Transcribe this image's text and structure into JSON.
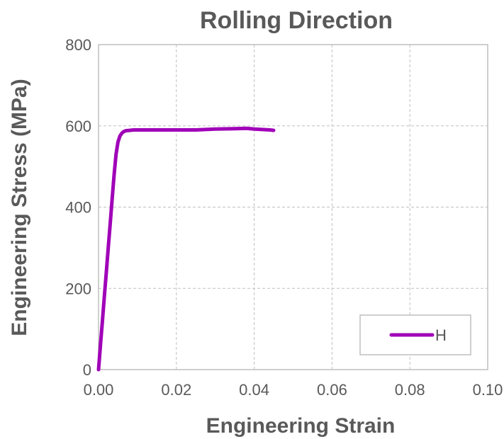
{
  "chart_data": {
    "type": "line",
    "title": "Rolling Direction",
    "xlabel": "Engineering Strain",
    "ylabel": "Engineering Stress (MPa)",
    "xlim": [
      0,
      0.1
    ],
    "ylim": [
      0,
      800
    ],
    "x_ticks": [
      0,
      0.02,
      0.04,
      0.06,
      0.08,
      0.1
    ],
    "x_tick_labels": [
      "0.00",
      "0.02",
      "0.04",
      "0.06",
      "0.08",
      "0.10"
    ],
    "y_ticks": [
      0,
      200,
      400,
      600,
      800
    ],
    "y_tick_labels": [
      "0",
      "200",
      "400",
      "600",
      "800"
    ],
    "grid": "dashed",
    "legend_position": "bottom-right",
    "series": [
      {
        "name": "H",
        "color": "#a000b8",
        "x": [
          0,
          0.0005,
          0.001,
          0.0015,
          0.002,
          0.0025,
          0.003,
          0.0035,
          0.004,
          0.0045,
          0.005,
          0.0055,
          0.006,
          0.0065,
          0.007,
          0.008,
          0.009,
          0.01,
          0.012,
          0.015,
          0.02,
          0.025,
          0.03,
          0.035,
          0.038,
          0.04,
          0.042,
          0.044,
          0.045
        ],
        "y": [
          0,
          60,
          120,
          180,
          240,
          300,
          360,
          420,
          480,
          530,
          560,
          575,
          582,
          586,
          588,
          589,
          590,
          590,
          590,
          590,
          590,
          590,
          592,
          593,
          594,
          592,
          591,
          590,
          589
        ]
      }
    ]
  }
}
